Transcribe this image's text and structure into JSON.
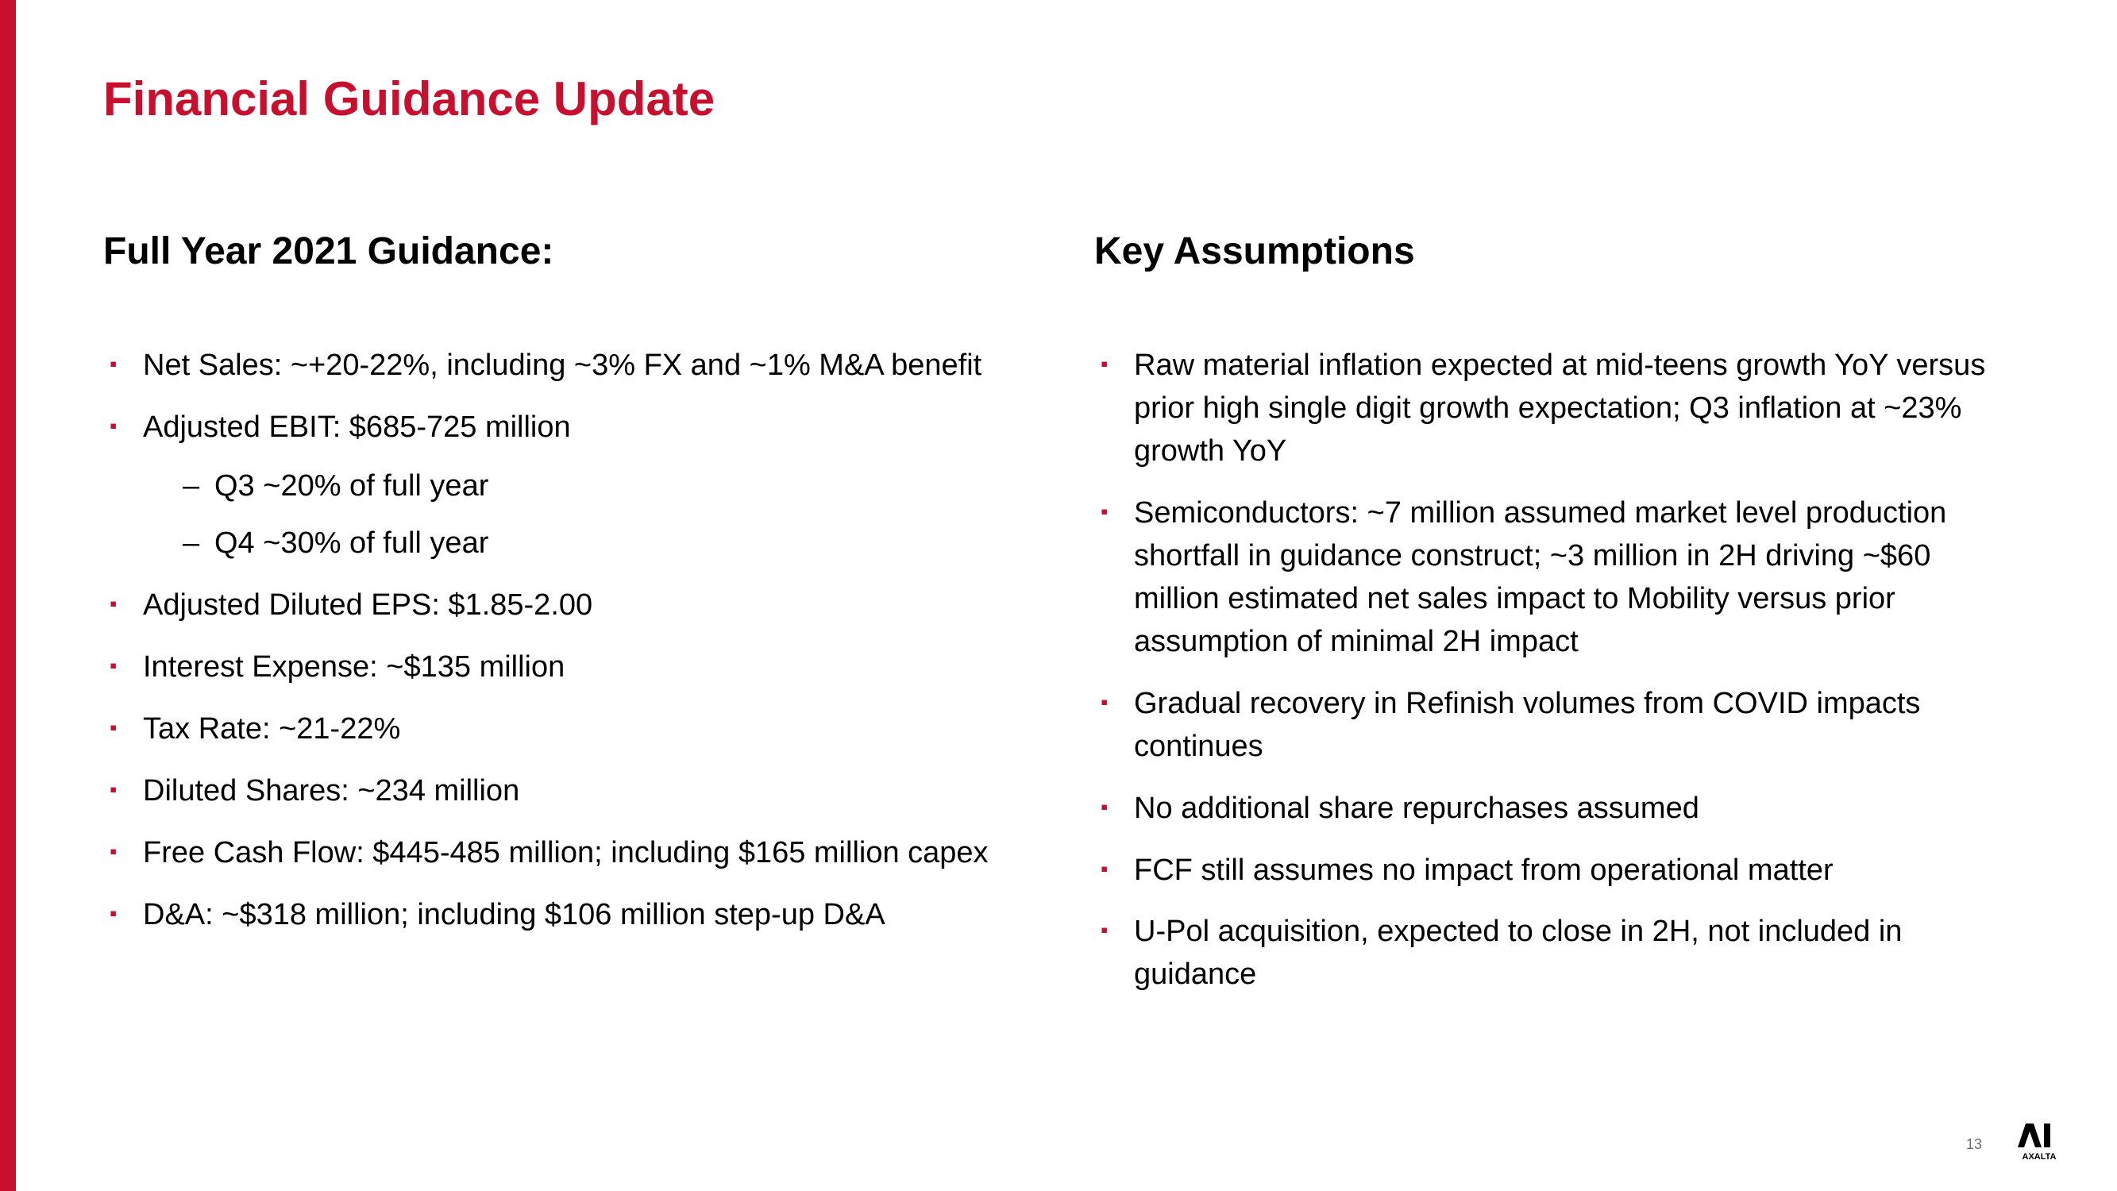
{
  "title": "Financial Guidance Update",
  "leftColumn": {
    "heading": "Full Year 2021 Guidance:",
    "items": [
      {
        "text": "Net Sales: ~+20-22%, including ~3% FX and ~1% M&A benefit"
      },
      {
        "text": "Adjusted EBIT: $685-725 million",
        "subitems": [
          "Q3 ~20% of full year",
          "Q4 ~30% of full year"
        ]
      },
      {
        "text": "Adjusted Diluted EPS: $1.85-2.00"
      },
      {
        "text": "Interest Expense: ~$135 million"
      },
      {
        "text": "Tax Rate: ~21-22%"
      },
      {
        "text": "Diluted Shares: ~234 million"
      },
      {
        "text": "Free Cash Flow: $445-485 million; including $165 million capex"
      },
      {
        "text": "D&A: ~$318 million; including $106 million step-up D&A"
      }
    ]
  },
  "rightColumn": {
    "heading": "Key Assumptions",
    "items": [
      {
        "text": "Raw material inflation expected at mid-teens growth YoY versus prior high single digit growth expectation; Q3 inflation at ~23% growth YoY"
      },
      {
        "text": "Semiconductors: ~7 million assumed market level production shortfall in guidance construct; ~3 million in 2H driving ~$60 million estimated net sales impact to Mobility versus prior assumption of minimal 2H impact"
      },
      {
        "text": "Gradual recovery in Refinish volumes from COVID impacts continues"
      },
      {
        "text": "No additional share repurchases assumed"
      },
      {
        "text": "FCF still assumes no impact from operational matter"
      },
      {
        "text": "U-Pol acquisition, expected to close in 2H, not included in guidance"
      }
    ]
  },
  "pageNumber": "13",
  "logoText": "AXALTA",
  "colors": {
    "accent": "#c8102e",
    "text": "#000000",
    "background": "#ffffff"
  }
}
